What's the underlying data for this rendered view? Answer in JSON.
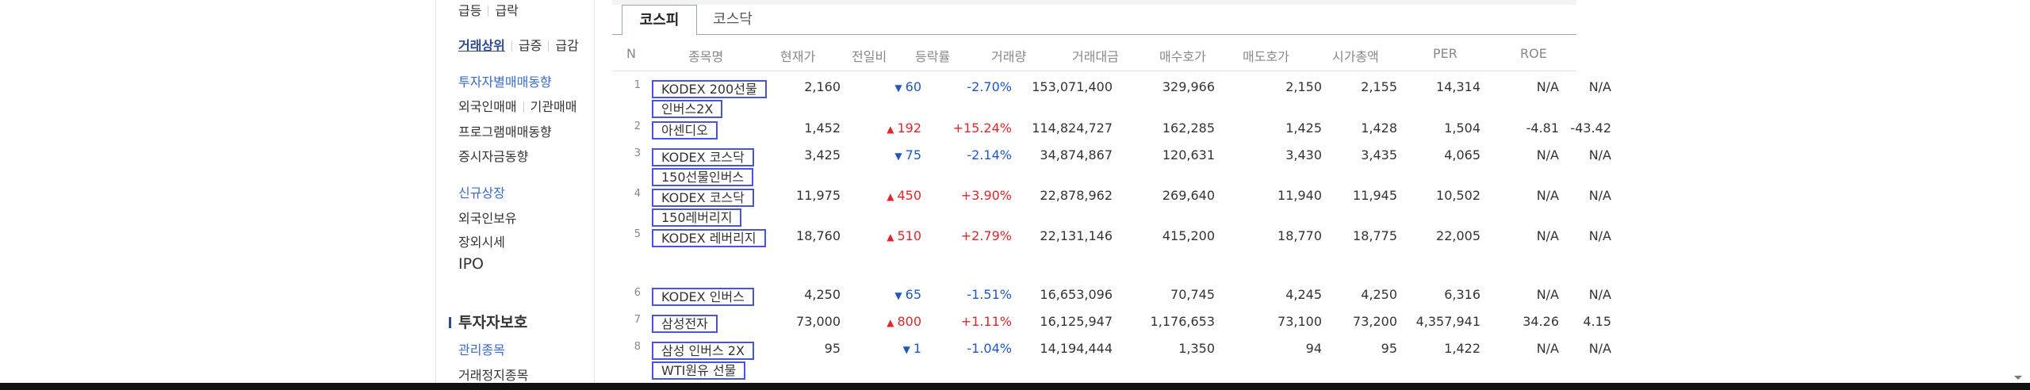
{
  "sidebar": {
    "rows": [
      {
        "items": [
          "급등",
          "급락"
        ]
      },
      {
        "items": [
          "거래상위",
          "급증",
          "급감"
        ]
      },
      {
        "items": [
          "투자자별매매동향"
        ]
      },
      {
        "items": [
          "외국인매매",
          "기관매매"
        ]
      },
      {
        "items": [
          "프로그램매매동향"
        ]
      },
      {
        "items": [
          "증시자금동향"
        ]
      },
      {
        "items": [
          "신규상장"
        ]
      },
      {
        "items": [
          "외국인보유"
        ]
      },
      {
        "items": [
          "장외시세"
        ]
      },
      {
        "items": [
          "IPO"
        ]
      },
      {
        "items": [
          "투자자보호"
        ]
      },
      {
        "items": [
          "관리종목"
        ]
      },
      {
        "items": [
          "거래정지종목"
        ]
      }
    ]
  },
  "tabs": [
    "코스피",
    "코스닥"
  ],
  "columns": [
    "N",
    "종목명",
    "현재가",
    "전일비",
    "등락률",
    "거래량",
    "거래대금",
    "매수호가",
    "매도호가",
    "시가총액",
    "PER",
    "ROE"
  ],
  "rows": [
    {
      "n": "1",
      "name": "KODEX 200선물인버스2X",
      "cur": "2,160",
      "dir": "down",
      "tri": "▼",
      "chg": "60",
      "rate": "-2.70%",
      "vol": "153,071,400",
      "amt": "329,966",
      "bid": "2,150",
      "ask": "2,155",
      "cap": "14,314",
      "per": "N/A",
      "roe": "N/A"
    },
    {
      "n": "2",
      "name": "아센디오",
      "cur": "1,452",
      "dir": "up",
      "tri": "▲",
      "chg": "192",
      "rate": "+15.24%",
      "vol": "114,824,727",
      "amt": "162,285",
      "bid": "1,425",
      "ask": "1,428",
      "cap": "1,504",
      "per": "-4.81",
      "roe": "-43.42"
    },
    {
      "n": "3",
      "name": "KODEX 코스닥150선물인버스",
      "cur": "3,425",
      "dir": "down",
      "tri": "▼",
      "chg": "75",
      "rate": "-2.14%",
      "vol": "34,874,867",
      "amt": "120,631",
      "bid": "3,430",
      "ask": "3,435",
      "cap": "4,065",
      "per": "N/A",
      "roe": "N/A"
    },
    {
      "n": "4",
      "name": "KODEX 코스닥150레버리지",
      "cur": "11,975",
      "dir": "up",
      "tri": "▲",
      "chg": "450",
      "rate": "+3.90%",
      "vol": "22,878,962",
      "amt": "269,640",
      "bid": "11,940",
      "ask": "11,945",
      "cap": "10,502",
      "per": "N/A",
      "roe": "N/A"
    },
    {
      "n": "5",
      "name": "KODEX 레버리지",
      "cur": "18,760",
      "dir": "up",
      "tri": "▲",
      "chg": "510",
      "rate": "+2.79%",
      "vol": "22,131,146",
      "amt": "415,200",
      "bid": "18,770",
      "ask": "18,775",
      "cap": "22,005",
      "per": "N/A",
      "roe": "N/A"
    },
    {
      "n": "6",
      "name": "KODEX 인버스",
      "cur": "4,250",
      "dir": "down",
      "tri": "▼",
      "chg": "65",
      "rate": "-1.51%",
      "vol": "16,653,096",
      "amt": "70,745",
      "bid": "4,245",
      "ask": "4,250",
      "cap": "6,316",
      "per": "N/A",
      "roe": "N/A"
    },
    {
      "n": "7",
      "name": "삼성전자",
      "cur": "73,000",
      "dir": "up",
      "tri": "▲",
      "chg": "800",
      "rate": "+1.11%",
      "vol": "16,125,947",
      "amt": "1,176,653",
      "bid": "73,100",
      "ask": "73,200",
      "cap": "4,357,941",
      "per": "34.26",
      "roe": "4.15"
    },
    {
      "n": "8",
      "name": "삼성 인버스 2X WTI원유 선물",
      "cur": "95",
      "dir": "down",
      "tri": "▼",
      "chg": "1",
      "rate": "-1.04%",
      "vol": "14,194,444",
      "amt": "1,350",
      "bid": "94",
      "ask": "95",
      "cap": "1,422",
      "per": "N/A",
      "roe": "N/A"
    }
  ]
}
